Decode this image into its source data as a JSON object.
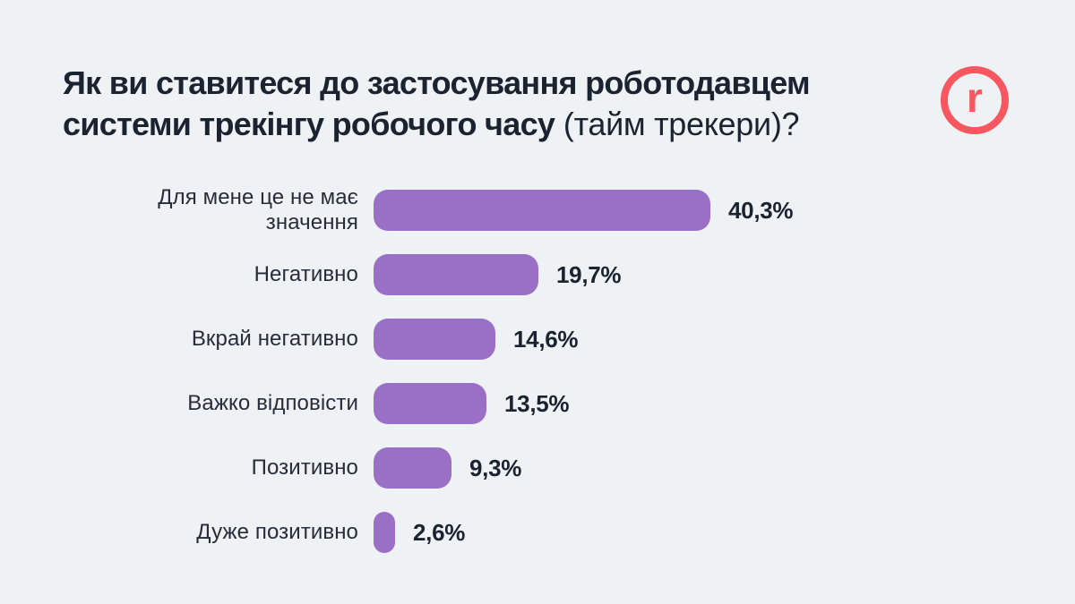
{
  "page": {
    "background": "#EFF2F5"
  },
  "header": {
    "title_line1": "Як ви ставитеся до застосування роботодавцем",
    "title_line2_bold": "системи трекінгу робочого часу",
    "title_line2_regular": " (тайм трекери)?",
    "logo_letter": "r",
    "logo_color": "#F8575F"
  },
  "chart_data": {
    "type": "bar",
    "orientation": "horizontal",
    "title": "Як ви ставитеся до застосування роботодавцем системи трекінгу робочого часу (тайм трекери)?",
    "categories": [
      "Для мене це не має значення",
      "Негативно",
      "Вкрай негативно",
      "Важко відповісти",
      "Позитивно",
      "Дуже позитивно"
    ],
    "values": [
      40.3,
      19.7,
      14.6,
      13.5,
      9.3,
      2.6
    ],
    "value_labels": [
      "40,3%",
      "19,7%",
      "14,6%",
      "13,5%",
      "9,3%",
      "2,6%"
    ],
    "bar_color": "#9A6FC6",
    "label_color": "#262D38",
    "value_color": "#1B2330",
    "xlim": [
      0,
      40.3
    ],
    "grid": false,
    "legend": false,
    "value_label_position": "end-of-bar"
  }
}
